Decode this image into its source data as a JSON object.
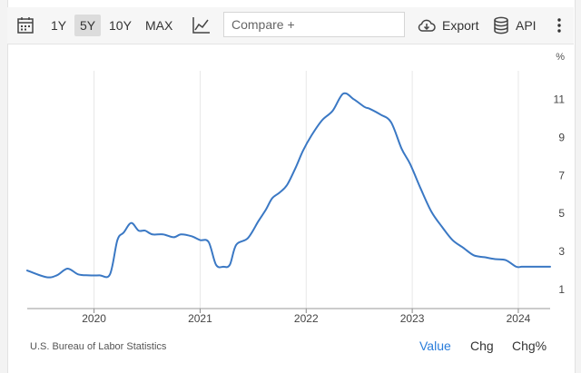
{
  "toolbar": {
    "ranges": [
      "1Y",
      "5Y",
      "10Y",
      "MAX"
    ],
    "active_range": "5Y",
    "compare_placeholder": "Compare +",
    "export_label": "Export",
    "api_label": "API"
  },
  "footer": {
    "source": "U.S. Bureau of Labor Statistics",
    "tabs": [
      "Value",
      "Chg",
      "Chg%"
    ],
    "active_tab": "Value"
  },
  "colors": {
    "line": "#3a78c4",
    "accent": "#2a7ddb",
    "grid": "#e8e8e8"
  },
  "chart_data": {
    "type": "line",
    "title": "",
    "xlabel": "",
    "ylabel": "%",
    "ylim": [
      0,
      12.5
    ],
    "yticks": [
      1,
      3,
      5,
      7,
      9,
      11
    ],
    "xticks": [
      "2020",
      "2021",
      "2022",
      "2023",
      "2024"
    ],
    "grid": true,
    "axis_side": "right",
    "series": [
      {
        "name": "",
        "x": [
          2019.37,
          2019.55,
          2019.65,
          2019.75,
          2019.85,
          2019.95,
          2020.05,
          2020.15,
          2020.22,
          2020.28,
          2020.35,
          2020.42,
          2020.48,
          2020.55,
          2020.65,
          2020.75,
          2020.82,
          2020.92,
          2021.0,
          2021.08,
          2021.15,
          2021.22,
          2021.28,
          2021.34,
          2021.45,
          2021.55,
          2021.62,
          2021.68,
          2021.75,
          2021.82,
          2021.9,
          2021.97,
          2022.05,
          2022.15,
          2022.25,
          2022.35,
          2022.45,
          2022.55,
          2022.6,
          2022.7,
          2022.8,
          2022.9,
          2022.98,
          2023.08,
          2023.18,
          2023.28,
          2023.38,
          2023.48,
          2023.58,
          2023.68,
          2023.78,
          2023.88,
          2023.98,
          2024.03,
          2024.08,
          2024.13,
          2024.3
        ],
        "y": [
          2.0,
          1.65,
          1.75,
          2.1,
          1.8,
          1.75,
          1.75,
          1.8,
          3.6,
          4.0,
          4.5,
          4.1,
          4.1,
          3.9,
          3.9,
          3.75,
          3.9,
          3.8,
          3.6,
          3.5,
          2.3,
          2.2,
          2.3,
          3.35,
          3.7,
          4.6,
          5.2,
          5.8,
          6.1,
          6.5,
          7.4,
          8.3,
          9.1,
          9.9,
          10.4,
          11.3,
          11.0,
          10.6,
          10.5,
          10.2,
          9.8,
          8.4,
          7.6,
          6.3,
          5.1,
          4.3,
          3.6,
          3.2,
          2.8,
          2.7,
          2.6,
          2.55,
          2.2,
          2.2,
          2.2,
          2.2,
          2.2
        ]
      }
    ]
  }
}
